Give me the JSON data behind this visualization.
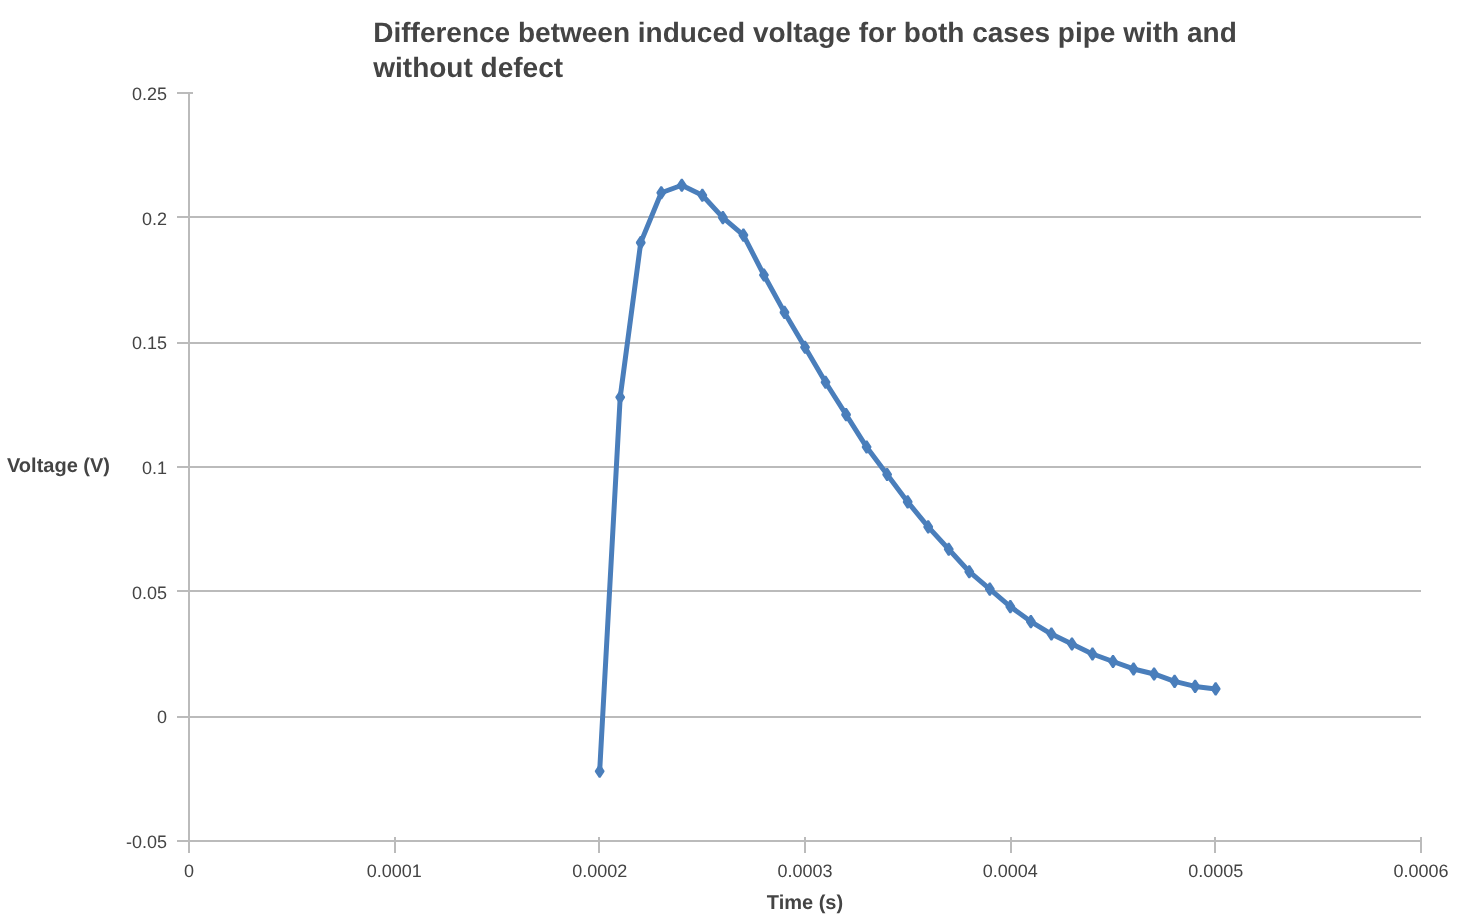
{
  "chart_data": {
    "type": "line",
    "title": "Difference between induced voltage for both cases pipe with and without defect",
    "xlabel": "Time (s)",
    "ylabel": "Voltage (V)",
    "x": [
      0.0002,
      0.00021,
      0.00022,
      0.00023,
      0.00024,
      0.00025,
      0.00026,
      0.00027,
      0.00028,
      0.00029,
      0.0003,
      0.00031,
      0.00032,
      0.00033,
      0.00034,
      0.00035,
      0.00036,
      0.00037,
      0.00038,
      0.00039,
      0.0004,
      0.00041,
      0.00042,
      0.00043,
      0.00044,
      0.00045,
      0.00046,
      0.00047,
      0.00048,
      0.00049,
      0.0005
    ],
    "series": [
      {
        "color": "#4a7ebb",
        "values": [
          -0.022,
          0.128,
          0.19,
          0.21,
          0.213,
          0.209,
          0.2,
          0.193,
          0.177,
          0.162,
          0.148,
          0.134,
          0.121,
          0.108,
          0.097,
          0.086,
          0.076,
          0.067,
          0.058,
          0.051,
          0.044,
          0.038,
          0.033,
          0.029,
          0.025,
          0.022,
          0.019,
          0.017,
          0.014,
          0.012,
          0.011
        ]
      }
    ],
    "xlim": [
      0,
      0.0006
    ],
    "xticks": [
      0,
      0.0001,
      0.0002,
      0.0003,
      0.0004,
      0.0005,
      0.0006
    ],
    "ylim": [
      -0.05,
      0.25
    ],
    "yticks": [
      -0.05,
      0,
      0.05,
      0.1,
      0.15,
      0.2,
      0.25
    ],
    "grid": "y",
    "marker": "diamond",
    "line_style": "solid",
    "legend": false
  }
}
